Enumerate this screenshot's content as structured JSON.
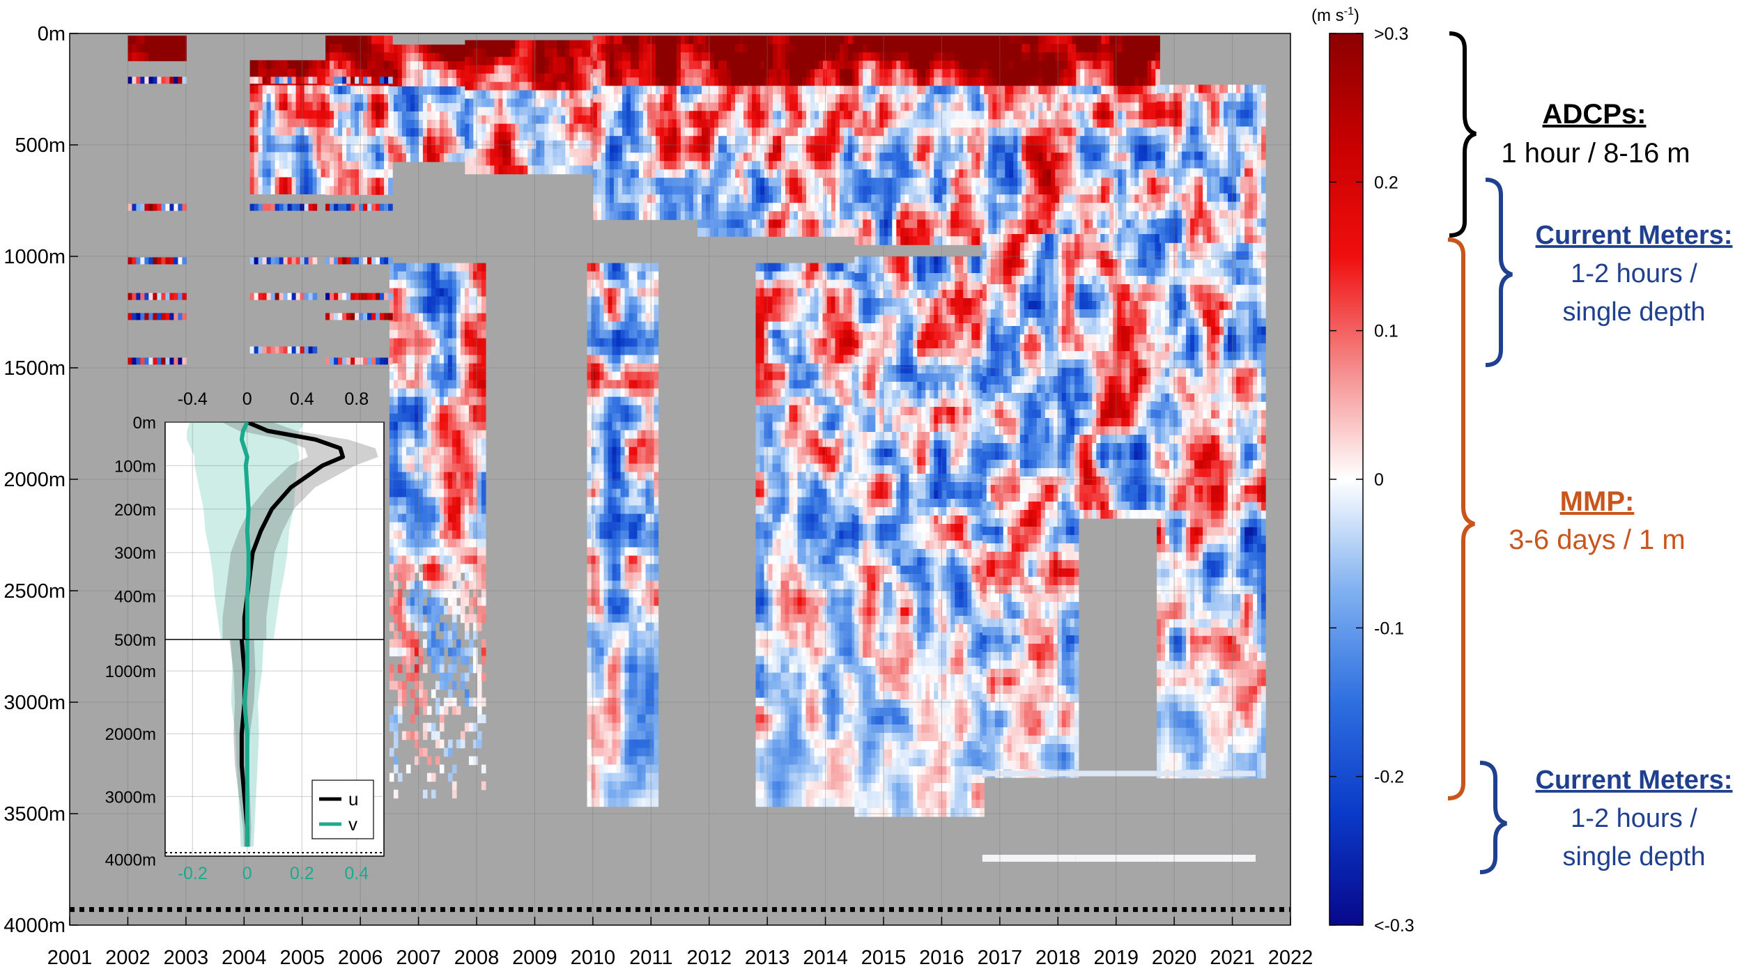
{
  "chart_data": [
    {
      "type": "heatmap",
      "title": "",
      "xlabel": "",
      "ylabel": "",
      "x_range": [
        2001,
        2022
      ],
      "y_range": [
        0,
        4000
      ],
      "y_reversed": true,
      "x_ticks": [
        "2001",
        "2002",
        "2003",
        "2004",
        "2005",
        "2006",
        "2007",
        "2008",
        "2009",
        "2010",
        "2011",
        "2012",
        "2013",
        "2014",
        "2015",
        "2016",
        "2017",
        "2018",
        "2019",
        "2020",
        "2021",
        "2022"
      ],
      "y_ticks": [
        "0m",
        "500m",
        "1000m",
        "1500m",
        "2000m",
        "2500m",
        "3000m",
        "3500m",
        "4000m"
      ],
      "grid": true,
      "missing_data_color": "#a6a6a6",
      "bottom_depth_m": 3930,
      "colorbar": {
        "unit_label": "(m s",
        "unit_superscript": "-1",
        "unit_close": ")",
        "range": [
          -0.3,
          0.3
        ],
        "ticks": [
          ">0.3",
          "0.2",
          "0.1",
          "0",
          "-0.1",
          "-0.2",
          "<-0.3"
        ],
        "colormap": [
          "#08088c",
          "#0a3ac8",
          "#2e6fe0",
          "#7fb0f0",
          "#ffffff",
          "#f58a8a",
          "#f00e0e",
          "#c80000",
          "#8c0000"
        ]
      },
      "coverage": {
        "adcp": [
          {
            "x": [
              2002.0,
              2003.0
            ],
            "depth": [
              10,
              120
            ]
          },
          {
            "x": [
              2004.1,
              2005.4
            ],
            "depth": [
              120,
              720
            ]
          },
          {
            "x": [
              2005.4,
              2006.5
            ],
            "depth": [
              10,
              720
            ]
          },
          {
            "x": [
              2006.5,
              2007.8
            ],
            "depth": [
              50,
              560
            ]
          },
          {
            "x": [
              2007.8,
              2010.0
            ],
            "depth": [
              30,
              610
            ]
          },
          {
            "x": [
              2010.0,
              2011.8
            ],
            "depth": [
              10,
              810
            ]
          },
          {
            "x": [
              2011.8,
              2014.5
            ],
            "depth": [
              10,
              880
            ]
          },
          {
            "x": [
              2014.5,
              2019.7
            ],
            "depth": [
              10,
              930
            ]
          },
          {
            "x": [
              2019.7,
              2021.5
            ],
            "depth": [
              230,
              910
            ]
          }
        ],
        "current_meter_depths_m": [
          210,
          780,
          1020,
          1180,
          1270,
          1420,
          1470
        ],
        "mmp": [
          {
            "x": [
              2006.5,
              2008.1
            ],
            "depth": [
              1030,
              3480
            ],
            "fade_to": 2300
          },
          {
            "x": [
              2009.9,
              2011.1
            ],
            "depth": [
              1030,
              3450
            ]
          },
          {
            "x": [
              2012.8,
              2014.5
            ],
            "depth": [
              1030,
              3450
            ]
          },
          {
            "x": [
              2014.5,
              2016.7
            ],
            "depth": [
              1000,
              3500
            ]
          },
          {
            "x": [
              2016.7,
              2018.3
            ],
            "depth": [
              900,
              3310
            ]
          },
          {
            "x": [
              2018.3,
              2019.7
            ],
            "depth": [
              900,
              2150
            ]
          },
          {
            "x": [
              2019.7,
              2021.5
            ],
            "depth": [
              940,
              3310
            ]
          }
        ],
        "deep_current_meter_depth_m": 3700
      }
    },
    {
      "type": "line",
      "title": "",
      "top_x_ticks": [
        "-0.4",
        "0",
        "0.4",
        "0.8"
      ],
      "top_x_range": [
        -0.6,
        1.0
      ],
      "bottom_x_ticks": [
        "-0.2",
        "0",
        "0.2",
        "0.4"
      ],
      "bottom_x_range": [
        -0.3,
        0.5
      ],
      "y_ticks_upper": [
        "0m",
        "100m",
        "200m",
        "300m",
        "400m",
        "500m"
      ],
      "y_ticks_lower": [
        "1000m",
        "2000m",
        "3000m",
        "4000m"
      ],
      "legend_position": "bottom-right",
      "series": [
        {
          "name": "u",
          "color": "#000000",
          "upper_depth": [
            0,
            20,
            40,
            60,
            80,
            100,
            150,
            200,
            250,
            300,
            350,
            400,
            450,
            500
          ],
          "upper_values": [
            0.0,
            0.15,
            0.5,
            0.68,
            0.7,
            0.55,
            0.32,
            0.18,
            0.1,
            0.04,
            0.02,
            0.0,
            -0.02,
            -0.02
          ],
          "lower_depth": [
            500,
            1000,
            1500,
            2000,
            2500,
            3000,
            3500,
            3800
          ],
          "lower_values": [
            -0.02,
            -0.01,
            -0.01,
            -0.02,
            -0.02,
            -0.01,
            0.0,
            0.0
          ]
        },
        {
          "name": "v",
          "color": "#1aab8e",
          "upper_depth": [
            0,
            20,
            40,
            60,
            80,
            100,
            150,
            200,
            250,
            300,
            350,
            400,
            450,
            500
          ],
          "upper_values": [
            0.0,
            -0.03,
            -0.04,
            -0.02,
            0.0,
            -0.01,
            0.0,
            0.01,
            0.0,
            0.01,
            0.01,
            0.0,
            0.0,
            0.0
          ],
          "lower_depth": [
            500,
            1000,
            1500,
            2000,
            2500,
            3000,
            3500,
            3800
          ],
          "lower_values": [
            0.0,
            0.0,
            -0.01,
            0.0,
            0.0,
            0.0,
            0.0,
            0.0
          ]
        }
      ]
    }
  ],
  "annotations": {
    "adcp": {
      "title": "ADCPs:",
      "detail": "1 hour / 8-16 m",
      "color": "#000000",
      "depth_range": [
        0,
        900
      ]
    },
    "current_meters_upper": {
      "title": "Current Meters:",
      "detail1": "1-2 hours /",
      "detail2": "single depth",
      "color": "#1f3f8f",
      "depth_range": [
        650,
        1500
      ]
    },
    "mmp": {
      "title": "MMP:",
      "detail": "3-6 days / 1 m",
      "color": "#c8561c",
      "depth_range": [
        930,
        3450
      ]
    },
    "current_meters_lower": {
      "title": "Current Meters:",
      "detail1": "1-2 hours /",
      "detail2": "single depth",
      "color": "#1f3f8f",
      "depth_range": [
        3270,
        3770
      ]
    }
  }
}
